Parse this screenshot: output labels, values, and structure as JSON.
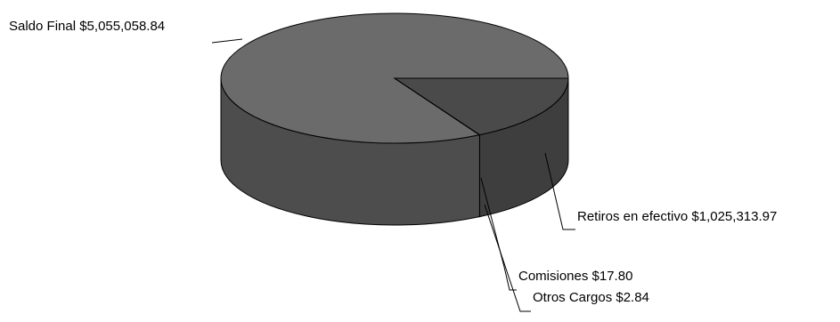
{
  "chart_data": {
    "type": "pie",
    "style": "3d",
    "labels": [
      "Saldo Final",
      "Retiros en efectivo",
      "Comisiones",
      "Otros Cargos"
    ],
    "values": [
      5055058.84,
      1025313.97,
      17.8,
      2.84
    ],
    "data_labels": [
      "Saldo Final $5,055,058.84",
      "Retiros en efectivo $1,025,313.97",
      "Comisiones $17.80",
      "Otros Cargos $2.84"
    ],
    "colors": {
      "main_top": "#6b6b6b",
      "main_side": "#4d4d4d",
      "small_top": "#4a4a4a",
      "small_side": "#3e3e3e",
      "outline": "#000000"
    }
  }
}
